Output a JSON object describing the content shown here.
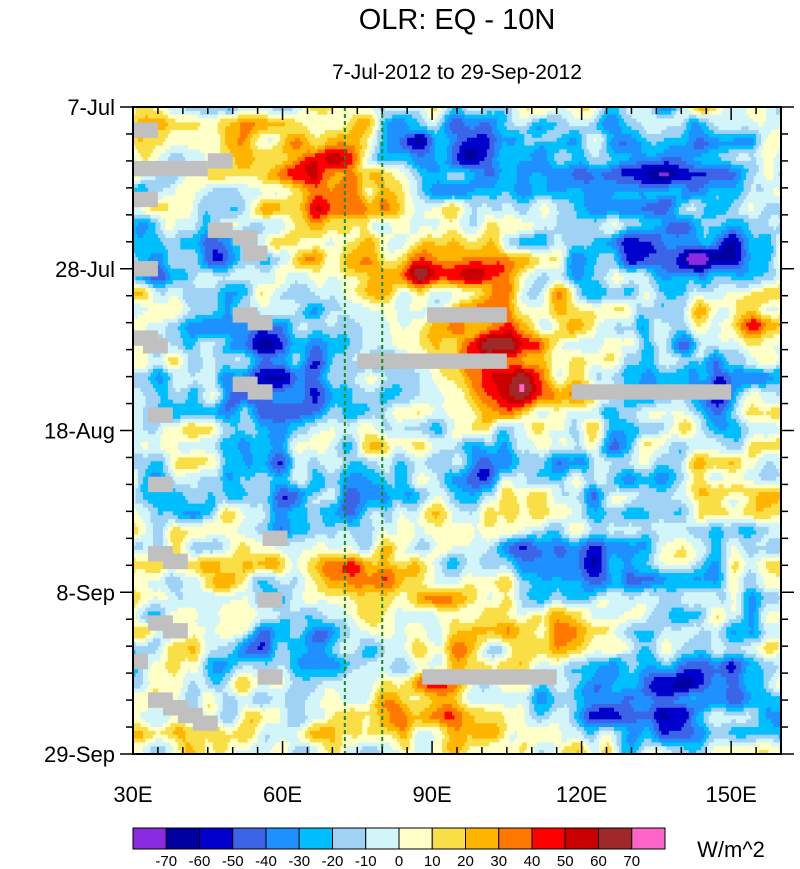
{
  "chart_data": {
    "type": "heatmap",
    "title": "OLR: EQ - 10N",
    "subtitle": "7-Jul-2012 to 29-Sep-2012",
    "x_axis": {
      "range": [
        30,
        160
      ],
      "tick_values": [
        30,
        60,
        90,
        120,
        150
      ],
      "tick_labels": [
        "30E",
        "60E",
        "90E",
        "120E",
        "150E"
      ]
    },
    "y_axis": {
      "range_days": [
        0,
        84
      ],
      "tick_days": [
        0,
        21,
        42,
        63,
        84
      ],
      "tick_labels": [
        "7-Jul",
        "28-Jul",
        "18-Aug",
        "8-Sep",
        "29-Sep"
      ]
    },
    "reference_lines_lon": [
      72.5,
      80
    ],
    "colorbar": {
      "units": "W/m^2",
      "level_labels": [
        "-70",
        "-60",
        "-50",
        "-40",
        "-30",
        "-20",
        "-10",
        "0",
        "10",
        "20",
        "30",
        "40",
        "50",
        "60",
        "70"
      ],
      "colors": [
        "#8a2be2",
        "#0000a0",
        "#0000cd",
        "#3c64e6",
        "#1e90ff",
        "#00bfff",
        "#a0d2f5",
        "#d2f5fa",
        "#ffffc8",
        "#fade46",
        "#ffb400",
        "#ff7800",
        "#ff0000",
        "#c80000",
        "#a02828",
        "#ff64c8"
      ]
    },
    "missing_data_color": "#c0c0c0",
    "anomaly_features": [
      {
        "lon0": 55,
        "day0": 2,
        "lon1": 82,
        "day1": 18,
        "value": 40
      },
      {
        "lon0": 72,
        "day0": 18,
        "lon1": 110,
        "day1": 24,
        "value": 45
      },
      {
        "lon0": 88,
        "day0": 26,
        "lon1": 118,
        "day1": 38,
        "value": 45
      },
      {
        "lon0": 100,
        "day0": 34,
        "lon1": 126,
        "day1": 40,
        "value": 30
      },
      {
        "lon0": 60,
        "day0": 42,
        "lon1": 100,
        "day1": 58,
        "value": 25
      },
      {
        "lon0": 66,
        "day0": 58,
        "lon1": 92,
        "day1": 64,
        "value": 40
      },
      {
        "lon0": 70,
        "day0": 74,
        "lon1": 110,
        "day1": 84,
        "value": 35
      },
      {
        "lon0": 74,
        "day0": 62,
        "lon1": 130,
        "day1": 72,
        "value": 25
      },
      {
        "lon0": 150,
        "day0": 24,
        "lon1": 160,
        "day1": 30,
        "value": 30
      },
      {
        "lon0": 140,
        "day0": 48,
        "lon1": 160,
        "day1": 52,
        "value": 30
      },
      {
        "lon0": 130,
        "day0": 56,
        "lon1": 148,
        "day1": 60,
        "value": 25
      },
      {
        "lon0": 40,
        "day0": 2,
        "lon1": 62,
        "day1": 10,
        "value": 10
      },
      {
        "lon0": 30,
        "day0": 60,
        "lon1": 55,
        "day1": 84,
        "value": 10
      },
      {
        "lon0": 76,
        "day0": 0,
        "lon1": 118,
        "day1": 12,
        "value": -40
      },
      {
        "lon0": 112,
        "day0": 2,
        "lon1": 160,
        "day1": 14,
        "value": -45
      },
      {
        "lon0": 122,
        "day0": 14,
        "lon1": 158,
        "day1": 24,
        "value": -55
      },
      {
        "lon0": 40,
        "day0": 26,
        "lon1": 76,
        "day1": 44,
        "value": -50
      },
      {
        "lon0": 120,
        "day0": 30,
        "lon1": 160,
        "day1": 40,
        "value": -45
      },
      {
        "lon0": 44,
        "day0": 44,
        "lon1": 100,
        "day1": 56,
        "value": -40
      },
      {
        "lon0": 96,
        "day0": 54,
        "lon1": 150,
        "day1": 64,
        "value": -45
      },
      {
        "lon0": 110,
        "day0": 68,
        "lon1": 160,
        "day1": 82,
        "value": -45
      },
      {
        "lon0": 30,
        "day0": 12,
        "lon1": 52,
        "day1": 24,
        "value": -30
      },
      {
        "lon0": 84,
        "day0": 42,
        "lon1": 140,
        "day1": 50,
        "value": -30
      },
      {
        "lon0": 40,
        "day0": 66,
        "lon1": 76,
        "day1": 74,
        "value": -35
      }
    ],
    "missing_data_patches": [
      {
        "lon0": 30,
        "day0": 2,
        "lon1": 35,
        "day1": 4
      },
      {
        "lon0": 30,
        "day0": 7,
        "lon1": 45,
        "day1": 9
      },
      {
        "lon0": 45,
        "day0": 6,
        "lon1": 50,
        "day1": 8
      },
      {
        "lon0": 30,
        "day0": 11,
        "lon1": 35,
        "day1": 13
      },
      {
        "lon0": 45,
        "day0": 15,
        "lon1": 50,
        "day1": 17
      },
      {
        "lon0": 50,
        "day0": 16,
        "lon1": 55,
        "day1": 18
      },
      {
        "lon0": 52,
        "day0": 18,
        "lon1": 57,
        "day1": 20
      },
      {
        "lon0": 30,
        "day0": 20,
        "lon1": 35,
        "day1": 22
      },
      {
        "lon0": 50,
        "day0": 26,
        "lon1": 55,
        "day1": 28
      },
      {
        "lon0": 53,
        "day0": 27,
        "lon1": 58,
        "day1": 29
      },
      {
        "lon0": 30,
        "day0": 29,
        "lon1": 35,
        "day1": 31
      },
      {
        "lon0": 32,
        "day0": 30,
        "lon1": 37,
        "day1": 32
      },
      {
        "lon0": 89,
        "day0": 26,
        "lon1": 105,
        "day1": 28
      },
      {
        "lon0": 75,
        "day0": 32,
        "lon1": 105,
        "day1": 34
      },
      {
        "lon0": 50,
        "day0": 35,
        "lon1": 55,
        "day1": 37
      },
      {
        "lon0": 53,
        "day0": 36,
        "lon1": 58,
        "day1": 38
      },
      {
        "lon0": 118,
        "day0": 36,
        "lon1": 150,
        "day1": 38
      },
      {
        "lon0": 33,
        "day0": 39,
        "lon1": 38,
        "day1": 41
      },
      {
        "lon0": 33,
        "day0": 48,
        "lon1": 38,
        "day1": 50
      },
      {
        "lon0": 56,
        "day0": 55,
        "lon1": 61,
        "day1": 57
      },
      {
        "lon0": 33,
        "day0": 57,
        "lon1": 38,
        "day1": 59
      },
      {
        "lon0": 36,
        "day0": 58,
        "lon1": 41,
        "day1": 60
      },
      {
        "lon0": 55,
        "day0": 63,
        "lon1": 60,
        "day1": 65
      },
      {
        "lon0": 33,
        "day0": 66,
        "lon1": 38,
        "day1": 68
      },
      {
        "lon0": 36,
        "day0": 67,
        "lon1": 41,
        "day1": 69
      },
      {
        "lon0": 30,
        "day0": 71,
        "lon1": 33,
        "day1": 73
      },
      {
        "lon0": 55,
        "day0": 73,
        "lon1": 60,
        "day1": 75
      },
      {
        "lon0": 88,
        "day0": 73,
        "lon1": 115,
        "day1": 75
      },
      {
        "lon0": 33,
        "day0": 76,
        "lon1": 38,
        "day1": 78
      },
      {
        "lon0": 36,
        "day0": 77,
        "lon1": 41,
        "day1": 79
      },
      {
        "lon0": 39,
        "day0": 78,
        "lon1": 44,
        "day1": 80
      },
      {
        "lon0": 42,
        "day0": 79,
        "lon1": 47,
        "day1": 81
      }
    ]
  }
}
